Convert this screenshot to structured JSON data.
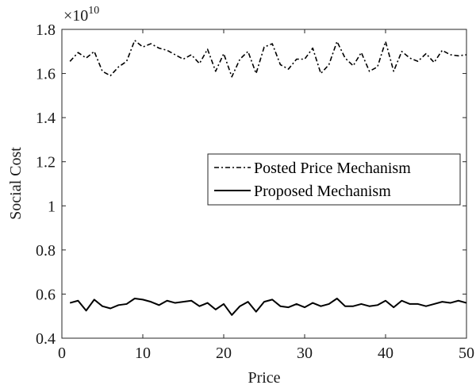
{
  "chart_data": {
    "type": "line",
    "title": "",
    "xlabel": "Price",
    "ylabel": "Social Cost",
    "y_exponent": {
      "base": "×10",
      "power": "10"
    },
    "xlim": [
      0,
      50
    ],
    "ylim": [
      0.4,
      1.8
    ],
    "x_ticks": [
      0,
      10,
      20,
      30,
      40,
      50
    ],
    "x_tick_labels": [
      "0",
      "10",
      "20",
      "30",
      "40",
      "50"
    ],
    "y_ticks": [
      0.4,
      0.6,
      0.8,
      1.0,
      1.2,
      1.4,
      1.6,
      1.8
    ],
    "y_tick_labels": [
      "0.4",
      "0.6",
      "0.8",
      "1",
      "1.2",
      "1.4",
      "1.6",
      "1.8"
    ],
    "grid": false,
    "legend_position": "right-middle",
    "x": [
      1,
      2,
      3,
      4,
      5,
      6,
      7,
      8,
      9,
      10,
      11,
      12,
      13,
      14,
      15,
      16,
      17,
      18,
      19,
      20,
      21,
      22,
      23,
      24,
      25,
      26,
      27,
      28,
      29,
      30,
      31,
      32,
      33,
      34,
      35,
      36,
      37,
      38,
      39,
      40,
      41,
      42,
      43,
      44,
      45,
      46,
      47,
      48,
      49,
      50
    ],
    "series": [
      {
        "name": "Posted Price Mechanism",
        "style": "dash-dot",
        "color": "#000000",
        "values": [
          1.655,
          1.695,
          1.67,
          1.7,
          1.61,
          1.59,
          1.63,
          1.655,
          1.75,
          1.72,
          1.735,
          1.715,
          1.705,
          1.685,
          1.665,
          1.685,
          1.645,
          1.71,
          1.61,
          1.69,
          1.585,
          1.665,
          1.7,
          1.6,
          1.72,
          1.735,
          1.64,
          1.62,
          1.665,
          1.665,
          1.715,
          1.6,
          1.64,
          1.745,
          1.67,
          1.635,
          1.695,
          1.61,
          1.63,
          1.745,
          1.61,
          1.7,
          1.67,
          1.655,
          1.69,
          1.65,
          1.705,
          1.685,
          1.68,
          1.685
        ]
      },
      {
        "name": "Proposed Mechanism",
        "style": "solid",
        "color": "#000000",
        "values": [
          0.56,
          0.57,
          0.525,
          0.575,
          0.545,
          0.535,
          0.55,
          0.555,
          0.58,
          0.575,
          0.565,
          0.55,
          0.57,
          0.56,
          0.565,
          0.57,
          0.545,
          0.56,
          0.53,
          0.555,
          0.505,
          0.545,
          0.565,
          0.52,
          0.565,
          0.575,
          0.545,
          0.54,
          0.555,
          0.54,
          0.56,
          0.545,
          0.555,
          0.58,
          0.545,
          0.545,
          0.555,
          0.545,
          0.55,
          0.57,
          0.54,
          0.57,
          0.555,
          0.555,
          0.545,
          0.555,
          0.565,
          0.56,
          0.57,
          0.56
        ]
      }
    ]
  }
}
